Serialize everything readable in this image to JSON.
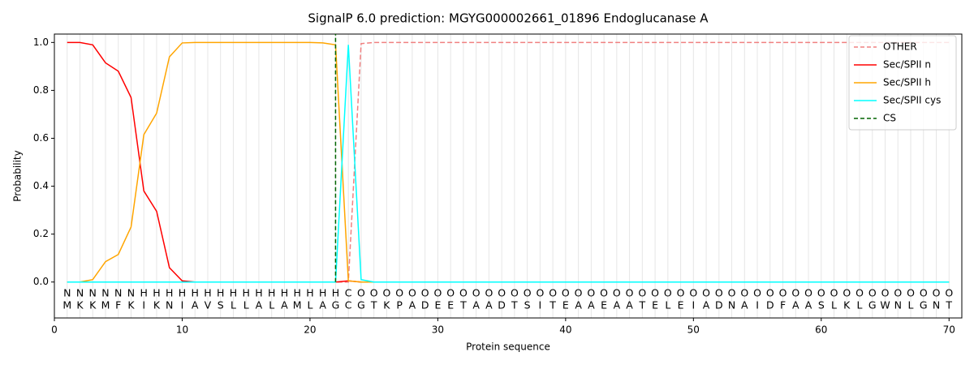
{
  "chart_data": {
    "type": "line",
    "title": "SignalP 6.0 prediction: MGYG000002661_01896 Endoglucanase A",
    "xlabel": "Protein sequence",
    "ylabel": "Probability",
    "xlim": [
      0,
      71
    ],
    "ylim": [
      -0.15,
      1.035
    ],
    "xticks": [
      0,
      10,
      20,
      30,
      40,
      50,
      60,
      70
    ],
    "yticks": [
      {
        "value": 0,
        "label": "0.0"
      },
      {
        "value": 0.2,
        "label": "0.2"
      },
      {
        "value": 0.4,
        "label": "0.4"
      },
      {
        "value": 0.6,
        "label": "0.6"
      },
      {
        "value": 0.8,
        "label": "0.8"
      },
      {
        "value": 1,
        "label": "1.0"
      }
    ],
    "xgrid": true,
    "legend": "upper right",
    "x": [
      1,
      2,
      3,
      4,
      5,
      6,
      7,
      8,
      9,
      10,
      11,
      12,
      13,
      14,
      15,
      16,
      17,
      18,
      19,
      20,
      21,
      22,
      23,
      24,
      25,
      26,
      27,
      28,
      29,
      30,
      31,
      32,
      33,
      34,
      35,
      36,
      37,
      38,
      39,
      40,
      41,
      42,
      43,
      44,
      45,
      46,
      47,
      48,
      49,
      50,
      51,
      52,
      53,
      54,
      55,
      56,
      57,
      58,
      59,
      60,
      61,
      62,
      63,
      64,
      65,
      66,
      67,
      68,
      69,
      70
    ],
    "sequence": [
      "M",
      "K",
      "K",
      "M",
      "F",
      "K",
      "I",
      "K",
      "N",
      "I",
      "A",
      "V",
      "S",
      "L",
      "L",
      "A",
      "L",
      "A",
      "M",
      "L",
      "A",
      "G",
      "C",
      "G",
      "T",
      "K",
      "P",
      "A",
      "D",
      "E",
      "E",
      "T",
      "A",
      "A",
      "D",
      "T",
      "S",
      "I",
      "T",
      "E",
      "A",
      "A",
      "E",
      "A",
      "A",
      "T",
      "E",
      "L",
      "E",
      "I",
      "A",
      "D",
      "N",
      "A",
      "I",
      "D",
      "F",
      "A",
      "A",
      "S",
      "L",
      "K",
      "L",
      "G",
      "W",
      "N",
      "L",
      "G",
      "N",
      "T"
    ],
    "labels": [
      "N",
      "N",
      "N",
      "N",
      "N",
      "N",
      "H",
      "H",
      "H",
      "H",
      "H",
      "H",
      "H",
      "H",
      "H",
      "H",
      "H",
      "H",
      "H",
      "H",
      "H",
      "H",
      "C",
      "O",
      "O",
      "O",
      "O",
      "O",
      "O",
      "O",
      "O",
      "O",
      "O",
      "O",
      "O",
      "O",
      "O",
      "O",
      "O",
      "O",
      "O",
      "O",
      "O",
      "O",
      "O",
      "O",
      "O",
      "O",
      "O",
      "O",
      "O",
      "O",
      "O",
      "O",
      "O",
      "O",
      "O",
      "O",
      "O",
      "O",
      "O",
      "O",
      "O",
      "O",
      "O",
      "O",
      "O",
      "O",
      "O",
      "O"
    ],
    "label_colors": {
      "N": "#ff0000",
      "H": "#ffa500",
      "C": "#00ffff",
      "O": "#808080"
    },
    "series": [
      {
        "name": "OTHER",
        "color": "#f08080",
        "dashed": true,
        "values": [
          0,
          0,
          0,
          0,
          0,
          0,
          0,
          0,
          0,
          0,
          0,
          0,
          0,
          0,
          0,
          0,
          0,
          0,
          0,
          0,
          0,
          0,
          0,
          0.995,
          1,
          1,
          1,
          1,
          1,
          1,
          1,
          1,
          1,
          1,
          1,
          1,
          1,
          1,
          1,
          1,
          1,
          1,
          1,
          1,
          1,
          1,
          1,
          1,
          1,
          1,
          1,
          1,
          1,
          1,
          1,
          1,
          1,
          1,
          1,
          1,
          1,
          1,
          1,
          1,
          1,
          1,
          1,
          1,
          1,
          1
        ]
      },
      {
        "name": "Sec/SPII n",
        "color": "#ff0000",
        "values": [
          1,
          1,
          0.99,
          0.915,
          0.88,
          0.77,
          0.38,
          0.295,
          0.06,
          0.005,
          0,
          0,
          0,
          0,
          0,
          0,
          0,
          0,
          0,
          0,
          0,
          0,
          0.005,
          0,
          0,
          0,
          0,
          0,
          0,
          0,
          0,
          0,
          0,
          0,
          0,
          0,
          0,
          0,
          0,
          0,
          0,
          0,
          0,
          0,
          0,
          0,
          0,
          0,
          0,
          0,
          0,
          0,
          0,
          0,
          0,
          0,
          0,
          0,
          0,
          0,
          0,
          0,
          0,
          0,
          0,
          0,
          0,
          0,
          0,
          0
        ]
      },
      {
        "name": "Sec/SPII h",
        "color": "#ffa500",
        "values": [
          0,
          0,
          0.01,
          0.085,
          0.115,
          0.23,
          0.615,
          0.705,
          0.94,
          0.998,
          1,
          1,
          1,
          1,
          1,
          1,
          1,
          1,
          1,
          1,
          0.998,
          0.99,
          0.005,
          0,
          0,
          0,
          0,
          0,
          0,
          0,
          0,
          0,
          0,
          0,
          0,
          0,
          0,
          0,
          0,
          0,
          0,
          0,
          0,
          0,
          0,
          0,
          0,
          0,
          0,
          0,
          0,
          0,
          0,
          0,
          0,
          0,
          0,
          0,
          0,
          0,
          0,
          0,
          0,
          0,
          0,
          0,
          0,
          0,
          0,
          0
        ]
      },
      {
        "name": "Sec/SPII cys",
        "color": "#00ffff",
        "values": [
          0,
          0,
          0,
          0,
          0,
          0,
          0,
          0,
          0,
          0,
          0,
          0,
          0,
          0,
          0,
          0,
          0,
          0,
          0,
          0,
          0,
          0,
          0.99,
          0.01,
          0,
          0,
          0,
          0,
          0,
          0,
          0,
          0,
          0,
          0,
          0,
          0,
          0,
          0,
          0,
          0,
          0,
          0,
          0,
          0,
          0,
          0,
          0,
          0,
          0,
          0,
          0,
          0,
          0,
          0,
          0,
          0,
          0,
          0,
          0,
          0,
          0,
          0,
          0,
          0,
          0,
          0,
          0,
          0,
          0,
          0
        ]
      }
    ],
    "cs": {
      "name": "CS",
      "x": 22,
      "color": "#006400"
    }
  }
}
